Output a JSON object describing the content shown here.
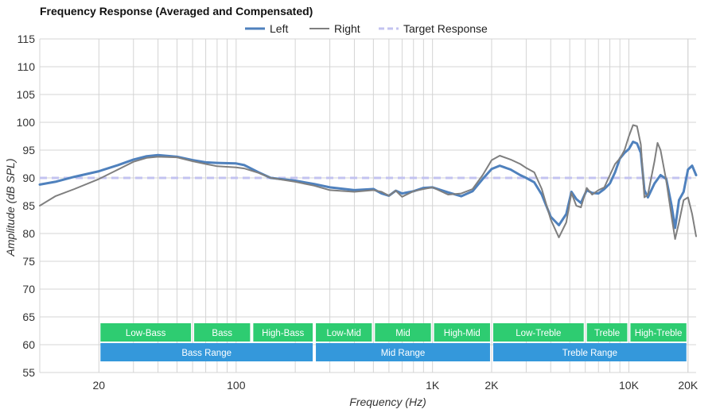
{
  "title": "Frequency Response (Averaged and Compensated)",
  "chart_data": {
    "type": "line",
    "title": "Frequency Response (Averaged and Compensated)",
    "xlabel": "Frequency (Hz)",
    "ylabel": "Amplitude (dB SPL)",
    "xscale": "log",
    "xlim": [
      10,
      22000
    ],
    "ylim": [
      55,
      115
    ],
    "grid": true,
    "legend_position": "top-center",
    "x_ticks": [
      {
        "value": 20,
        "label": "20"
      },
      {
        "value": 100,
        "label": "100"
      },
      {
        "value": 1000,
        "label": "1K"
      },
      {
        "value": 2000,
        "label": "2K"
      },
      {
        "value": 10000,
        "label": "10K"
      },
      {
        "value": 20000,
        "label": "20K"
      }
    ],
    "y_ticks": [
      55,
      60,
      65,
      70,
      75,
      80,
      85,
      90,
      95,
      100,
      105,
      110,
      115
    ],
    "series": [
      {
        "name": "Left",
        "color": "#4f81bd",
        "style": "solid",
        "points": [
          [
            10,
            88.8
          ],
          [
            12,
            89.3
          ],
          [
            15,
            90.2
          ],
          [
            20,
            91.2
          ],
          [
            25,
            92.3
          ],
          [
            30,
            93.3
          ],
          [
            35,
            93.9
          ],
          [
            40,
            94.1
          ],
          [
            50,
            93.8
          ],
          [
            60,
            93.2
          ],
          [
            70,
            92.8
          ],
          [
            80,
            92.7
          ],
          [
            100,
            92.6
          ],
          [
            110,
            92.3
          ],
          [
            130,
            91.0
          ],
          [
            150,
            90.0
          ],
          [
            200,
            89.5
          ],
          [
            250,
            88.9
          ],
          [
            300,
            88.3
          ],
          [
            400,
            87.8
          ],
          [
            500,
            88.0
          ],
          [
            550,
            87.2
          ],
          [
            600,
            86.8
          ],
          [
            650,
            87.7
          ],
          [
            700,
            87.2
          ],
          [
            800,
            87.6
          ],
          [
            900,
            88.2
          ],
          [
            1000,
            88.3
          ],
          [
            1200,
            87.4
          ],
          [
            1400,
            86.7
          ],
          [
            1600,
            87.6
          ],
          [
            1800,
            89.8
          ],
          [
            2000,
            91.6
          ],
          [
            2200,
            92.2
          ],
          [
            2500,
            91.5
          ],
          [
            2800,
            90.5
          ],
          [
            3000,
            90.0
          ],
          [
            3300,
            89.2
          ],
          [
            3600,
            87.0
          ],
          [
            4000,
            83.0
          ],
          [
            4400,
            81.5
          ],
          [
            4800,
            83.5
          ],
          [
            5100,
            87.5
          ],
          [
            5400,
            86.2
          ],
          [
            5700,
            85.5
          ],
          [
            6100,
            87.8
          ],
          [
            6500,
            87.3
          ],
          [
            7000,
            87.2
          ],
          [
            7500,
            88.0
          ],
          [
            8000,
            89.0
          ],
          [
            8500,
            91.0
          ],
          [
            9000,
            93.5
          ],
          [
            9500,
            94.5
          ],
          [
            10000,
            95.2
          ],
          [
            10500,
            96.5
          ],
          [
            11000,
            96.2
          ],
          [
            11500,
            94.5
          ],
          [
            12000,
            87.8
          ],
          [
            12500,
            86.5
          ],
          [
            13500,
            89.0
          ],
          [
            14500,
            90.5
          ],
          [
            15500,
            89.8
          ],
          [
            16500,
            85.0
          ],
          [
            17200,
            81.0
          ],
          [
            18000,
            86.0
          ],
          [
            19000,
            87.5
          ],
          [
            20000,
            91.5
          ],
          [
            21000,
            92.2
          ],
          [
            22000,
            90.5
          ]
        ]
      },
      {
        "name": "Right",
        "color": "#7f7f7f",
        "style": "solid",
        "points": [
          [
            10,
            85.0
          ],
          [
            12,
            86.7
          ],
          [
            15,
            88.0
          ],
          [
            20,
            89.8
          ],
          [
            25,
            91.5
          ],
          [
            30,
            92.9
          ],
          [
            35,
            93.6
          ],
          [
            40,
            93.8
          ],
          [
            50,
            93.7
          ],
          [
            60,
            93.0
          ],
          [
            70,
            92.5
          ],
          [
            80,
            92.1
          ],
          [
            100,
            91.9
          ],
          [
            110,
            91.7
          ],
          [
            130,
            90.9
          ],
          [
            150,
            90.0
          ],
          [
            200,
            89.3
          ],
          [
            250,
            88.6
          ],
          [
            300,
            87.8
          ],
          [
            400,
            87.5
          ],
          [
            500,
            87.8
          ],
          [
            550,
            87.5
          ],
          [
            600,
            86.8
          ],
          [
            650,
            87.7
          ],
          [
            700,
            86.6
          ],
          [
            800,
            87.6
          ],
          [
            900,
            88.0
          ],
          [
            1000,
            88.3
          ],
          [
            1200,
            87.0
          ],
          [
            1400,
            87.2
          ],
          [
            1600,
            88.0
          ],
          [
            1800,
            90.5
          ],
          [
            2000,
            93.2
          ],
          [
            2200,
            94.0
          ],
          [
            2500,
            93.3
          ],
          [
            2800,
            92.5
          ],
          [
            3000,
            91.8
          ],
          [
            3300,
            91.0
          ],
          [
            3600,
            88.0
          ],
          [
            4000,
            82.5
          ],
          [
            4400,
            79.3
          ],
          [
            4800,
            82.0
          ],
          [
            5100,
            87.3
          ],
          [
            5400,
            85.0
          ],
          [
            5700,
            84.7
          ],
          [
            6100,
            88.2
          ],
          [
            6500,
            87.0
          ],
          [
            7000,
            87.8
          ],
          [
            7500,
            88.3
          ],
          [
            8000,
            90.5
          ],
          [
            8500,
            92.5
          ],
          [
            9000,
            93.5
          ],
          [
            9500,
            95.0
          ],
          [
            10000,
            97.5
          ],
          [
            10500,
            99.5
          ],
          [
            11000,
            99.3
          ],
          [
            11500,
            96.0
          ],
          [
            12000,
            86.5
          ],
          [
            12500,
            87.0
          ],
          [
            13500,
            93.0
          ],
          [
            14000,
            96.3
          ],
          [
            14500,
            95.0
          ],
          [
            15500,
            89.5
          ],
          [
            16500,
            83.0
          ],
          [
            17200,
            79.0
          ],
          [
            18000,
            82.0
          ],
          [
            19000,
            86.0
          ],
          [
            20000,
            86.5
          ],
          [
            21000,
            83.5
          ],
          [
            22000,
            79.5
          ]
        ]
      },
      {
        "name": "Target Response",
        "color": "#c3c3f0",
        "style": "dashed",
        "points": [
          [
            10,
            90
          ],
          [
            22000,
            90
          ]
        ]
      }
    ],
    "bands": [
      {
        "label": "Low-Bass",
        "from": 20,
        "to": 60,
        "row": 1,
        "color": "#2ecc71"
      },
      {
        "label": "Bass",
        "from": 60,
        "to": 120,
        "row": 1,
        "color": "#2ecc71"
      },
      {
        "label": "High-Bass",
        "from": 120,
        "to": 250,
        "row": 1,
        "color": "#2ecc71"
      },
      {
        "label": "Low-Mid",
        "from": 250,
        "to": 500,
        "row": 1,
        "color": "#2ecc71"
      },
      {
        "label": "Mid",
        "from": 500,
        "to": 1000,
        "row": 1,
        "color": "#2ecc71"
      },
      {
        "label": "High-Mid",
        "from": 1000,
        "to": 2000,
        "row": 1,
        "color": "#2ecc71"
      },
      {
        "label": "Low-Treble",
        "from": 2000,
        "to": 6000,
        "row": 1,
        "color": "#2ecc71"
      },
      {
        "label": "Treble",
        "from": 6000,
        "to": 10000,
        "row": 1,
        "color": "#2ecc71"
      },
      {
        "label": "High-Treble",
        "from": 10000,
        "to": 20000,
        "row": 1,
        "color": "#2ecc71"
      },
      {
        "label": "Bass Range",
        "from": 20,
        "to": 250,
        "row": 2,
        "color": "#3498db"
      },
      {
        "label": "Mid Range",
        "from": 250,
        "to": 2000,
        "row": 2,
        "color": "#3498db"
      },
      {
        "label": "Treble Range",
        "from": 2000,
        "to": 20000,
        "row": 2,
        "color": "#3498db"
      }
    ]
  }
}
